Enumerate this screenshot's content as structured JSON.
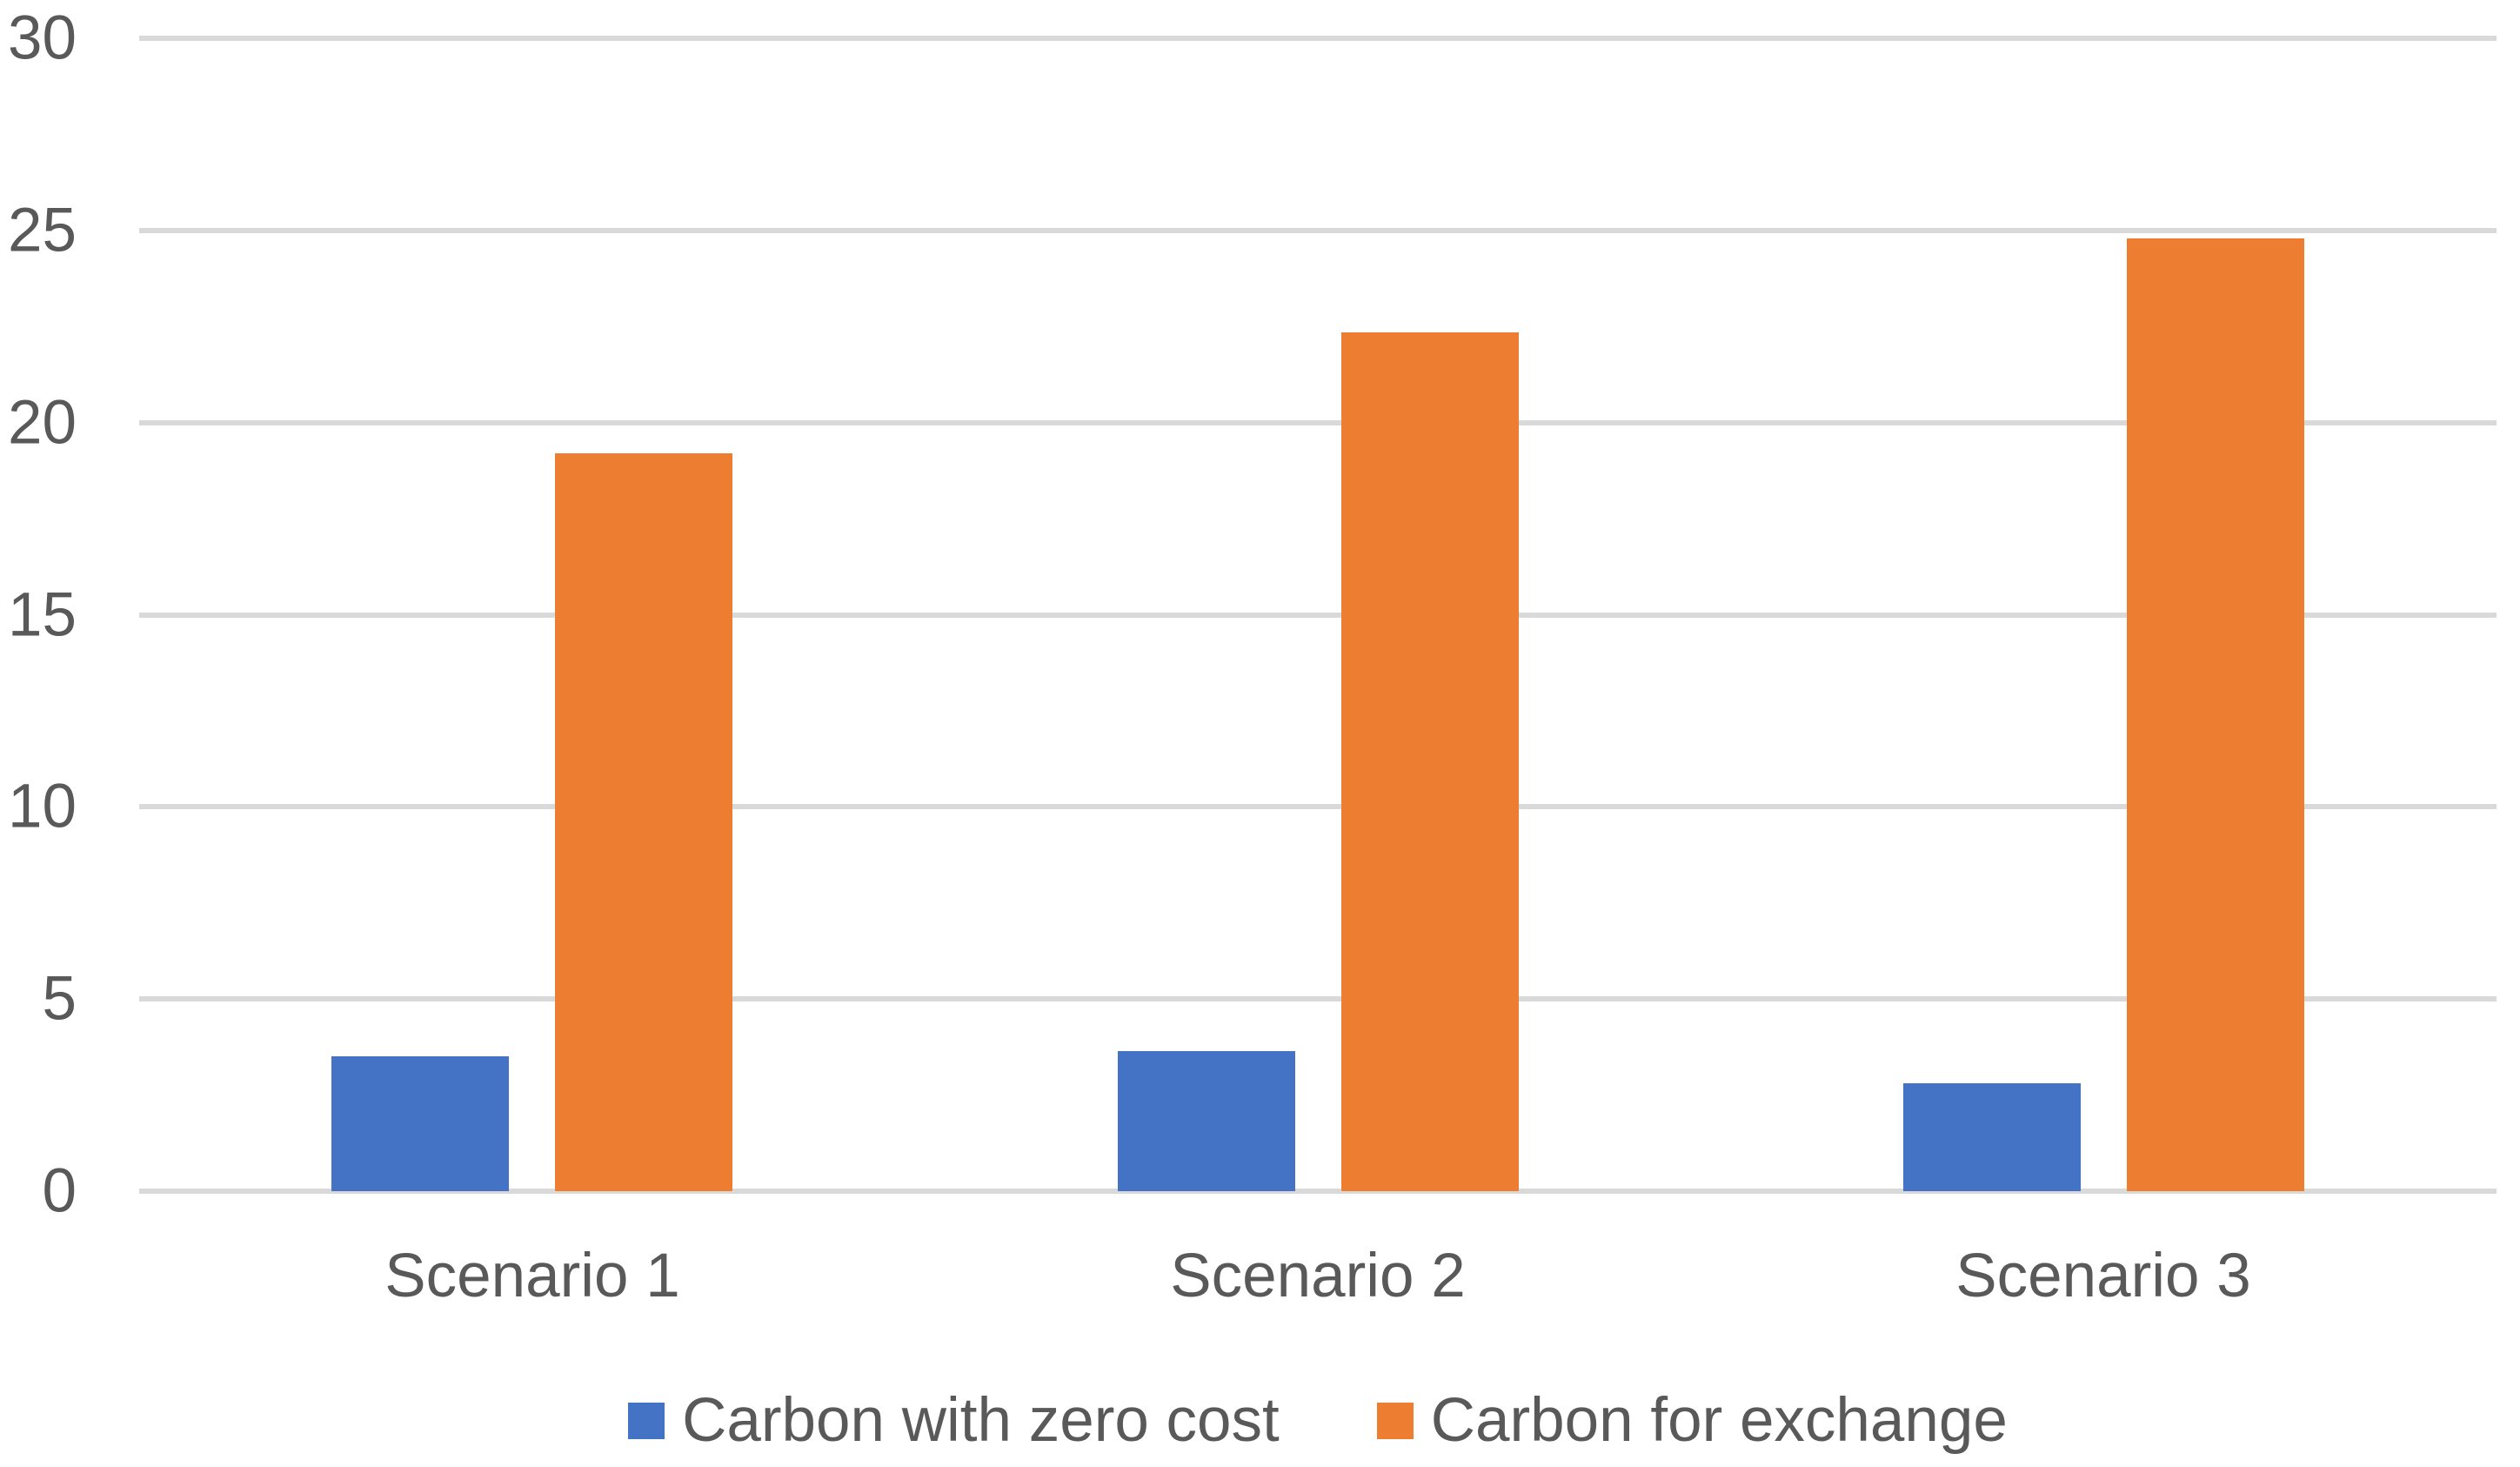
{
  "chart_data": {
    "type": "bar",
    "title": "",
    "categories": [
      "Scenario 1",
      "Scenario 2",
      "Scenario 3"
    ],
    "series": [
      {
        "name": "Carbon with zero cost",
        "color": "#4472C4",
        "values": [
          3.5,
          3.65,
          2.8
        ]
      },
      {
        "name": "Carbon for exchange",
        "color": "#ED7D31",
        "values": [
          19.2,
          22.35,
          24.8
        ]
      }
    ],
    "ylim": [
      0,
      30
    ],
    "yticks": [
      30,
      25,
      20,
      15,
      10,
      5,
      0
    ],
    "xlabel": "",
    "ylabel": "",
    "grid": "horizontal",
    "gridline_color": "#D9D9D9",
    "text_color": "#595959",
    "background_color": "#FFFFFF",
    "legend_position": "bottom"
  }
}
